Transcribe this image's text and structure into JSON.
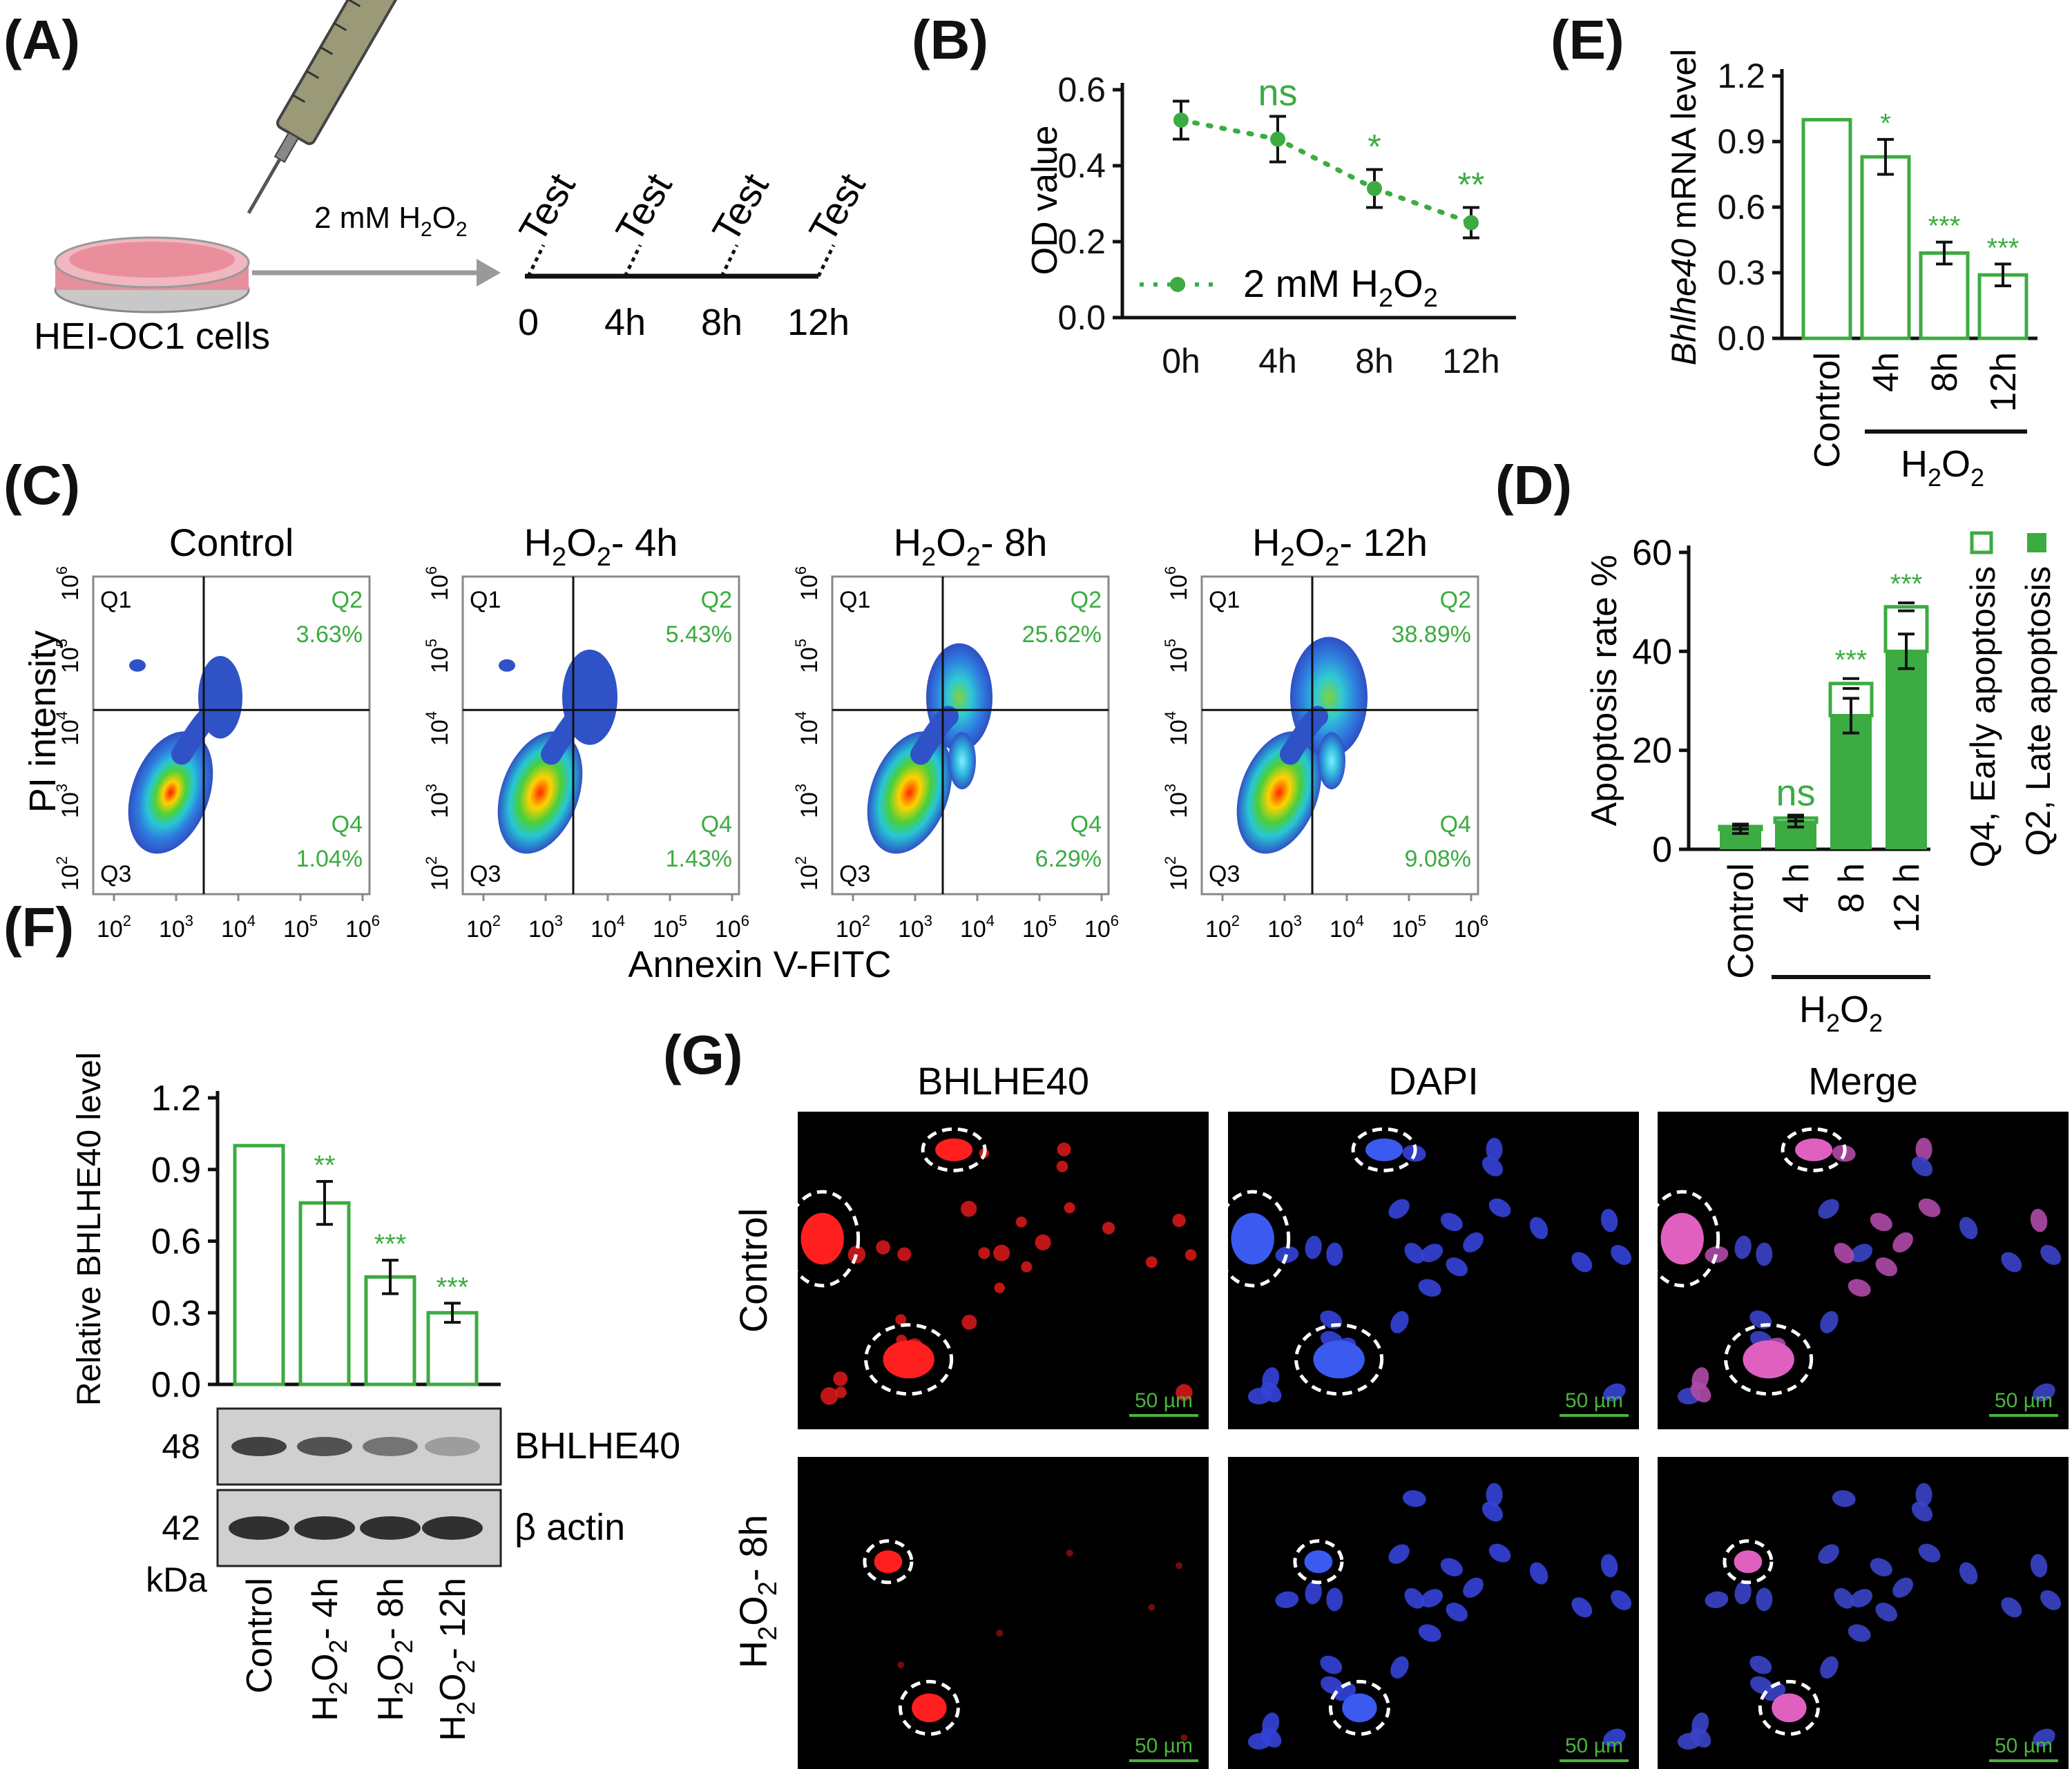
{
  "panels": {
    "A": "(A)",
    "B": "(B)",
    "C": "(C)",
    "D": "(D)",
    "E": "(E)",
    "F": "(F)",
    "G": "(G)"
  },
  "schematic": {
    "cells_label": "HEI-OC1 cells",
    "treatment_prefix": "2 mM H",
    "treatment_sub1": "2",
    "treatment_mid": "O",
    "treatment_sub2": "2",
    "test_label": "Test",
    "timepoints": [
      "0",
      "4h",
      "8h",
      "12h"
    ]
  },
  "chart_B": {
    "type": "line",
    "ylabel": "OD value",
    "x": [
      "0h",
      "4h",
      "8h",
      "12h"
    ],
    "values": [
      0.52,
      0.47,
      0.34,
      0.25
    ],
    "errors": [
      0.05,
      0.06,
      0.05,
      0.04
    ],
    "ylim": [
      0.0,
      0.6
    ],
    "yticks": [
      "0.0",
      "0.2",
      "0.4",
      "0.6"
    ],
    "significance": [
      "",
      "ns",
      "*",
      "**"
    ],
    "legend_prefix": "2 mM H",
    "legend_sub1": "2",
    "legend_mid": "O",
    "legend_sub2": "2"
  },
  "chart_E": {
    "type": "bar",
    "ylabel_italic": "Bhlhe40",
    "ylabel_rest": " mRNA level",
    "categories": [
      "Control",
      "4h",
      "8h",
      "12h"
    ],
    "values": [
      1.0,
      0.83,
      0.39,
      0.29
    ],
    "errors": [
      0.0,
      0.08,
      0.05,
      0.05
    ],
    "ylim": [
      0.0,
      1.2
    ],
    "yticks": [
      "0.0",
      "0.3",
      "0.6",
      "0.9",
      "1.2"
    ],
    "significance": [
      "",
      "*",
      "***",
      "***"
    ],
    "group_label_main": "H",
    "group_sub1": "2",
    "group_mid": "O",
    "group_sub2": "2"
  },
  "flow": {
    "xlabel": "Annexin V-FITC",
    "ylabel": "PI intensity",
    "tick_base": "10",
    "tick_exps": [
      "2",
      "3",
      "4",
      "5",
      "6"
    ],
    "quad_q1": "Q1",
    "quad_q2": "Q2",
    "quad_q3": "Q3",
    "quad_q4": "Q4",
    "plots": [
      {
        "title": "Control",
        "q2": "3.63%",
        "q4": "1.04%"
      },
      {
        "title": "4h",
        "q2": "5.43%",
        "q4": "1.43%"
      },
      {
        "title": "8h",
        "q2": "25.62%",
        "q4": "6.29%"
      },
      {
        "title": "12h",
        "q2": "38.89%",
        "q4": "9.08%"
      }
    ],
    "title_prefix": "H",
    "title_sub1": "2",
    "title_mid": "O",
    "title_sub2": "2",
    "title_dash": "- "
  },
  "chart_D": {
    "type": "bar",
    "ylabel": "Apoptosis rate %",
    "categories": [
      "Control",
      "4 h",
      "8 h",
      "12 h"
    ],
    "series": [
      {
        "name": "Q2, Late apoptosis",
        "values": [
          4.0,
          5.5,
          27,
          40
        ],
        "errors": [
          0.8,
          1.0,
          3.5,
          3.5
        ]
      },
      {
        "name": "Q4, Early apoptosis",
        "values": [
          0.6,
          0.8,
          6.5,
          9
        ],
        "errors": [
          0.5,
          0.6,
          1.0,
          0.8
        ]
      }
    ],
    "ylim": [
      0,
      60
    ],
    "yticks": [
      "0",
      "20",
      "40",
      "60"
    ],
    "significance": [
      "",
      "ns",
      "***",
      "***"
    ],
    "legend_early": "Q4, Early apoptosis",
    "legend_late": "Q2, Late apoptosis",
    "group_label_main": "H",
    "group_sub1": "2",
    "group_mid": "O",
    "group_sub2": "2"
  },
  "chart_F": {
    "type": "bar",
    "ylabel": "Relative BHLHE40 level",
    "categories": [
      "Control",
      "4h",
      "8h",
      "12h"
    ],
    "values": [
      1.0,
      0.76,
      0.45,
      0.3
    ],
    "errors": [
      0.0,
      0.09,
      0.07,
      0.04
    ],
    "ylim": [
      0.0,
      1.2
    ],
    "yticks": [
      "0.0",
      "0.3",
      "0.6",
      "0.9",
      "1.2"
    ],
    "significance": [
      "",
      "**",
      "***",
      "***"
    ],
    "blot_mw": [
      "48",
      "42"
    ],
    "blot_bands": [
      "BHLHE40",
      "β actin"
    ],
    "kda": "kDa",
    "xlabel_control": "Control",
    "xlabel_prefix": "H",
    "xlabel_sub1": "2",
    "xlabel_mid": "O",
    "xlabel_sub2": "2",
    "xlabel_dash": "- ",
    "xlabel_times": [
      "4h",
      "8h",
      "12h"
    ]
  },
  "panel_G": {
    "columns": [
      "BHLHE40",
      "DAPI",
      "Merge"
    ],
    "row_control": "Control",
    "row_treat_prefix": "H",
    "row_treat_sub1": "2",
    "row_treat_mid": "O",
    "row_treat_sub2": "2",
    "row_treat_suffix": "- 8h",
    "scale_bar": "50 µm"
  },
  "colors": {
    "accent_green": "#3cab41",
    "flow_blue": "#2f56c8",
    "red_stain": "#e0191b",
    "dapi_blue": "#3442d8",
    "merge_pink": "#d0509a"
  }
}
